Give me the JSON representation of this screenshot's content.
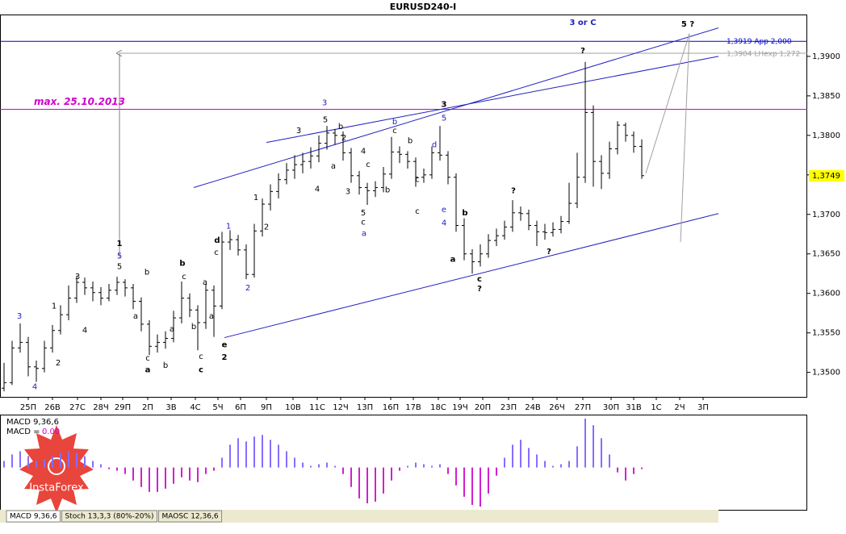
{
  "chart_data": {
    "type": "ohlc",
    "title": "EURUSD240-I",
    "logo": "InstaForex",
    "xlim": [
      -0.5,
      99.5
    ],
    "ylim": [
      1.3469,
      1.3953
    ],
    "yticks": [
      {
        "value": 1.35,
        "label": "1,3500"
      },
      {
        "value": 1.355,
        "label": "1,3550"
      },
      {
        "value": 1.36,
        "label": "1,3600"
      },
      {
        "value": 1.365,
        "label": "1,3650"
      },
      {
        "value": 1.37,
        "label": "1,3700"
      },
      {
        "value": 1.375,
        "label": "1,3750"
      },
      {
        "value": 1.38,
        "label": "1,3800"
      },
      {
        "value": 1.385,
        "label": "1,3850"
      },
      {
        "value": 1.39,
        "label": "1,3900"
      }
    ],
    "xticks": [
      {
        "value": 3,
        "label": "25П"
      },
      {
        "value": 6,
        "label": "26В"
      },
      {
        "value": 9.1,
        "label": "27С"
      },
      {
        "value": 12,
        "label": "28Ч"
      },
      {
        "value": 14.7,
        "label": "29П"
      },
      {
        "value": 17.8,
        "label": "2П"
      },
      {
        "value": 20.7,
        "label": "3В"
      },
      {
        "value": 23.7,
        "label": "4С"
      },
      {
        "value": 26.5,
        "label": "5Ч"
      },
      {
        "value": 29.3,
        "label": "6П"
      },
      {
        "value": 32.5,
        "label": "9П"
      },
      {
        "value": 35.8,
        "label": "10В"
      },
      {
        "value": 38.8,
        "label": "11С"
      },
      {
        "value": 41.7,
        "label": "12Ч"
      },
      {
        "value": 44.7,
        "label": "13П"
      },
      {
        "value": 47.9,
        "label": "16П"
      },
      {
        "value": 50.7,
        "label": "17В"
      },
      {
        "value": 53.8,
        "label": "18С"
      },
      {
        "value": 56.5,
        "label": "19Ч"
      },
      {
        "value": 59.3,
        "label": "20П"
      },
      {
        "value": 62.5,
        "label": "23П"
      },
      {
        "value": 65.5,
        "label": "24В"
      },
      {
        "value": 68.5,
        "label": "26Ч"
      },
      {
        "value": 71.7,
        "label": "27П"
      },
      {
        "value": 75.2,
        "label": "30П"
      },
      {
        "value": 78,
        "label": "31В"
      },
      {
        "value": 80.8,
        "label": "1С"
      },
      {
        "value": 83.7,
        "label": "2Ч"
      },
      {
        "value": 86.6,
        "label": "3П"
      }
    ],
    "bar_color": "#000000",
    "bars": [
      [
        1.348,
        1.3512,
        1.3476,
        1.3487
      ],
      [
        1.3487,
        1.354,
        1.3484,
        1.3531
      ],
      [
        1.3531,
        1.3562,
        1.3525,
        1.3538
      ],
      [
        1.3538,
        1.3545,
        1.3495,
        1.3507
      ],
      [
        1.3507,
        1.3515,
        1.3488,
        1.3505
      ],
      [
        1.3505,
        1.354,
        1.35,
        1.3531
      ],
      [
        1.3531,
        1.356,
        1.3525,
        1.3553
      ],
      [
        1.3553,
        1.3585,
        1.3548,
        1.3573
      ],
      [
        1.3573,
        1.361,
        1.3566,
        1.3594
      ],
      [
        1.3594,
        1.3622,
        1.3588,
        1.3614
      ],
      [
        1.3614,
        1.362,
        1.3598,
        1.3607
      ],
      [
        1.3607,
        1.3615,
        1.359,
        1.3601
      ],
      [
        1.3601,
        1.3608,
        1.3585,
        1.3594
      ],
      [
        1.3594,
        1.3612,
        1.359,
        1.3604
      ],
      [
        1.3604,
        1.3621,
        1.3598,
        1.3614
      ],
      [
        1.3614,
        1.3618,
        1.3596,
        1.3607
      ],
      [
        1.3607,
        1.3612,
        1.358,
        1.359
      ],
      [
        1.359,
        1.3595,
        1.3552,
        1.3561
      ],
      [
        1.3561,
        1.3566,
        1.3522,
        1.3533
      ],
      [
        1.3533,
        1.3548,
        1.3525,
        1.3538
      ],
      [
        1.3538,
        1.3552,
        1.353,
        1.3543
      ],
      [
        1.3543,
        1.3578,
        1.3538,
        1.3569
      ],
      [
        1.3569,
        1.3615,
        1.3562,
        1.3594
      ],
      [
        1.3594,
        1.36,
        1.357,
        1.3579
      ],
      [
        1.3579,
        1.3585,
        1.3528,
        1.3563
      ],
      [
        1.3563,
        1.3612,
        1.3555,
        1.3604
      ],
      [
        1.3604,
        1.361,
        1.3545,
        1.3584
      ],
      [
        1.3584,
        1.3678,
        1.358,
        1.3665
      ],
      [
        1.3665,
        1.368,
        1.3655,
        1.3668
      ],
      [
        1.3668,
        1.3674,
        1.3648,
        1.3655
      ],
      [
        1.3655,
        1.3662,
        1.3618,
        1.3624
      ],
      [
        1.3624,
        1.3688,
        1.362,
        1.3679
      ],
      [
        1.3679,
        1.372,
        1.3672,
        1.3713
      ],
      [
        1.3713,
        1.3738,
        1.3705,
        1.3729
      ],
      [
        1.3729,
        1.3752,
        1.372,
        1.3744
      ],
      [
        1.3744,
        1.3765,
        1.3738,
        1.3756
      ],
      [
        1.3756,
        1.3775,
        1.3745,
        1.3763
      ],
      [
        1.3763,
        1.3778,
        1.3752,
        1.3767
      ],
      [
        1.3767,
        1.3785,
        1.3758,
        1.3774
      ],
      [
        1.3774,
        1.38,
        1.3766,
        1.379
      ],
      [
        1.379,
        1.3812,
        1.3782,
        1.3803
      ],
      [
        1.3803,
        1.3808,
        1.3788,
        1.38
      ],
      [
        1.38,
        1.3805,
        1.3768,
        1.3778
      ],
      [
        1.3778,
        1.3784,
        1.374,
        1.3749
      ],
      [
        1.3749,
        1.3755,
        1.3725,
        1.3734
      ],
      [
        1.3734,
        1.374,
        1.3712,
        1.373
      ],
      [
        1.373,
        1.3742,
        1.3722,
        1.3734
      ],
      [
        1.3734,
        1.376,
        1.3728,
        1.3751
      ],
      [
        1.3751,
        1.3798,
        1.3745,
        1.3779
      ],
      [
        1.3779,
        1.3786,
        1.3765,
        1.3776
      ],
      [
        1.3776,
        1.378,
        1.3758,
        1.3767
      ],
      [
        1.3767,
        1.3772,
        1.3735,
        1.3747
      ],
      [
        1.3747,
        1.3758,
        1.374,
        1.375
      ],
      [
        1.375,
        1.3786,
        1.3745,
        1.3778
      ],
      [
        1.3778,
        1.3812,
        1.3768,
        1.3775
      ],
      [
        1.3775,
        1.378,
        1.3738,
        1.3747
      ],
      [
        1.3747,
        1.3752,
        1.3678,
        1.3686
      ],
      [
        1.3686,
        1.3695,
        1.3642,
        1.365
      ],
      [
        1.365,
        1.3656,
        1.3625,
        1.364
      ],
      [
        1.364,
        1.3662,
        1.3634,
        1.365
      ],
      [
        1.365,
        1.3675,
        1.3645,
        1.3667
      ],
      [
        1.3667,
        1.3682,
        1.366,
        1.3673
      ],
      [
        1.3673,
        1.3692,
        1.3668,
        1.3684
      ],
      [
        1.3684,
        1.3718,
        1.3678,
        1.3702
      ],
      [
        1.3702,
        1.371,
        1.3692,
        1.3701
      ],
      [
        1.3701,
        1.3706,
        1.368,
        1.3686
      ],
      [
        1.3686,
        1.3692,
        1.366,
        1.3678
      ],
      [
        1.3678,
        1.3688,
        1.3668,
        1.3677
      ],
      [
        1.3677,
        1.369,
        1.3672,
        1.3681
      ],
      [
        1.3681,
        1.3698,
        1.3676,
        1.3691
      ],
      [
        1.3691,
        1.374,
        1.3688,
        1.3714
      ],
      [
        1.3714,
        1.3778,
        1.3708,
        1.3747
      ],
      [
        1.3747,
        1.3893,
        1.374,
        1.3829
      ],
      [
        1.3829,
        1.3838,
        1.3735,
        1.3767
      ],
      [
        1.3767,
        1.3775,
        1.3732,
        1.3752
      ],
      [
        1.3752,
        1.3792,
        1.3745,
        1.3783
      ],
      [
        1.3783,
        1.3818,
        1.3776,
        1.3813
      ],
      [
        1.3813,
        1.3816,
        1.3792,
        1.38
      ],
      [
        1.38,
        1.3805,
        1.3778,
        1.3786
      ],
      [
        1.3786,
        1.3795,
        1.3745,
        1.3749
      ]
    ],
    "last_price": {
      "value": 1.3749,
      "label": "1,3749",
      "color": "#ffff00"
    },
    "levels": [
      {
        "value": 1.3919,
        "label": "1,3919 App 2,000",
        "color": "#0000cc",
        "from": -0.5
      },
      {
        "value": 1.3904,
        "label": "1,3904 LHexp 1,272",
        "color": "#a0a0a0",
        "from": 14.3
      },
      {
        "value": 1.3833,
        "label": "max. 25.10.2013",
        "color": "#d000d0",
        "from": -0.5
      }
    ],
    "lines": [
      {
        "x": [
          23.5,
          88.5
        ],
        "y": [
          1.3734,
          1.3936
        ],
        "color": "#2020c0"
      },
      {
        "x": [
          32.5,
          88.5
        ],
        "y": [
          1.3791,
          1.39
        ],
        "color": "#2020c0"
      },
      {
        "x": [
          27.3,
          88.5
        ],
        "y": [
          1.3544,
          1.3701
        ],
        "color": "#2020c0"
      },
      {
        "x": [
          14.3,
          14.3
        ],
        "y": [
          1.3645,
          1.3904
        ],
        "color": "#808080",
        "arrow": true
      },
      {
        "x": [
          79.5,
          84.9,
          83.8
        ],
        "y": [
          1.3752,
          1.3929,
          1.3665
        ],
        "color": "#a0a0a0"
      }
    ],
    "annotations": [
      {
        "text": "3",
        "x": 1.9,
        "y": 1.3571,
        "color": "#2020c0"
      },
      {
        "text": "4",
        "x": 3.8,
        "y": 1.3482,
        "color": "#2020c0"
      },
      {
        "text": "1",
        "x": 6.2,
        "y": 1.3584,
        "color": "#000000"
      },
      {
        "text": "2",
        "x": 6.7,
        "y": 1.3512,
        "color": "#000000"
      },
      {
        "text": "3",
        "x": 9.1,
        "y": 1.3621,
        "color": "#000000"
      },
      {
        "text": "4",
        "x": 10,
        "y": 1.3553,
        "color": "#000000"
      },
      {
        "text": "1",
        "x": 14.3,
        "y": 1.3663,
        "color": "#000000",
        "bold": true
      },
      {
        "text": "5",
        "x": 14.3,
        "y": 1.3647,
        "color": "#2020c0"
      },
      {
        "text": "5",
        "x": 14.3,
        "y": 1.3634,
        "color": "#000000"
      },
      {
        "text": "b",
        "x": 17.7,
        "y": 1.3627,
        "color": "#000000"
      },
      {
        "text": "a",
        "x": 16.3,
        "y": 1.3571,
        "color": "#000000"
      },
      {
        "text": "c",
        "x": 17.8,
        "y": 1.3518,
        "color": "#000000"
      },
      {
        "text": "a",
        "x": 17.8,
        "y": 1.3503,
        "color": "#000000",
        "bold": true
      },
      {
        "text": "b",
        "x": 20,
        "y": 1.3509,
        "color": "#000000"
      },
      {
        "text": "a",
        "x": 20.8,
        "y": 1.3555,
        "color": "#000000"
      },
      {
        "text": "b",
        "x": 22.1,
        "y": 1.3638,
        "color": "#000000",
        "bold": true
      },
      {
        "text": "c",
        "x": 22.3,
        "y": 1.3621,
        "color": "#000000"
      },
      {
        "text": "a",
        "x": 24.9,
        "y": 1.3614,
        "color": "#000000"
      },
      {
        "text": "b",
        "x": 23.5,
        "y": 1.3558,
        "color": "#000000"
      },
      {
        "text": "c",
        "x": 24.4,
        "y": 1.352,
        "color": "#000000"
      },
      {
        "text": "c",
        "x": 24.4,
        "y": 1.3503,
        "color": "#000000",
        "bold": true
      },
      {
        "text": "a",
        "x": 25.7,
        "y": 1.3571,
        "color": "#000000"
      },
      {
        "text": "d",
        "x": 26.4,
        "y": 1.3667,
        "color": "#000000",
        "bold": true
      },
      {
        "text": "c",
        "x": 26.3,
        "y": 1.3652,
        "color": "#000000"
      },
      {
        "text": "e",
        "x": 27.3,
        "y": 1.3535,
        "color": "#000000",
        "bold": true
      },
      {
        "text": "2",
        "x": 27.3,
        "y": 1.3519,
        "color": "#000000",
        "bold": true
      },
      {
        "text": "1",
        "x": 27.8,
        "y": 1.3685,
        "color": "#2020c0"
      },
      {
        "text": "2",
        "x": 30.2,
        "y": 1.3607,
        "color": "#2020c0"
      },
      {
        "text": "1",
        "x": 31.2,
        "y": 1.3721,
        "color": "#000000"
      },
      {
        "text": "2",
        "x": 32.5,
        "y": 1.3684,
        "color": "#000000"
      },
      {
        "text": "3",
        "x": 36.5,
        "y": 1.3806,
        "color": "#000000"
      },
      {
        "text": "4",
        "x": 38.8,
        "y": 1.3732,
        "color": "#000000"
      },
      {
        "text": "3",
        "x": 39.7,
        "y": 1.3841,
        "color": "#2020c0"
      },
      {
        "text": "5",
        "x": 39.8,
        "y": 1.382,
        "color": "#000000"
      },
      {
        "text": "b",
        "x": 41.7,
        "y": 1.3811,
        "color": "#000000"
      },
      {
        "text": "2",
        "x": 42.1,
        "y": 1.3797,
        "color": "#000000"
      },
      {
        "text": "a",
        "x": 40.8,
        "y": 1.3761,
        "color": "#000000"
      },
      {
        "text": "3",
        "x": 42.6,
        "y": 1.3729,
        "color": "#000000"
      },
      {
        "text": "4",
        "x": 44.5,
        "y": 1.378,
        "color": "#000000"
      },
      {
        "text": "c",
        "x": 45.1,
        "y": 1.3763,
        "color": "#000000"
      },
      {
        "text": "5",
        "x": 44.5,
        "y": 1.3702,
        "color": "#000000"
      },
      {
        "text": "c",
        "x": 44.5,
        "y": 1.369,
        "color": "#000000"
      },
      {
        "text": "a",
        "x": 44.6,
        "y": 1.3676,
        "color": "#2020c0"
      },
      {
        "text": "b",
        "x": 47.5,
        "y": 1.3731,
        "color": "#000000"
      },
      {
        "text": "b",
        "x": 48.4,
        "y": 1.3817,
        "color": "#2020c0"
      },
      {
        "text": "c",
        "x": 48.4,
        "y": 1.3806,
        "color": "#000000"
      },
      {
        "text": "b",
        "x": 50.3,
        "y": 1.3793,
        "color": "#000000"
      },
      {
        "text": "c",
        "x": 51.2,
        "y": 1.3744,
        "color": "#000000"
      },
      {
        "text": "c",
        "x": 51.2,
        "y": 1.3704,
        "color": "#000000"
      },
      {
        "text": "3",
        "x": 54.5,
        "y": 1.3839,
        "color": "#000000",
        "bold": true
      },
      {
        "text": "5",
        "x": 54.5,
        "y": 1.3822,
        "color": "#2020c0"
      },
      {
        "text": "d",
        "x": 53.3,
        "y": 1.3788,
        "color": "#2020c0"
      },
      {
        "text": "e",
        "x": 54.5,
        "y": 1.3706,
        "color": "#2020c0"
      },
      {
        "text": "4",
        "x": 54.5,
        "y": 1.3689,
        "color": "#2020c0"
      },
      {
        "text": "b",
        "x": 57.1,
        "y": 1.3702,
        "color": "#000000",
        "bold": true
      },
      {
        "text": "a",
        "x": 55.6,
        "y": 1.3643,
        "color": "#000000",
        "bold": true
      },
      {
        "text": "c",
        "x": 58.9,
        "y": 1.3618,
        "color": "#000000",
        "bold": true
      },
      {
        "text": "?",
        "x": 58.9,
        "y": 1.3606,
        "color": "#000000",
        "bold": true
      },
      {
        "text": "?",
        "x": 63.1,
        "y": 1.373,
        "color": "#000000",
        "bold": true
      },
      {
        "text": "?",
        "x": 67.5,
        "y": 1.3653,
        "color": "#000000",
        "bold": true
      },
      {
        "text": "?",
        "x": 71.7,
        "y": 1.3907,
        "color": "#000000",
        "bold": true
      },
      {
        "text": "3 or C",
        "x": 71.7,
        "y": 1.3943,
        "color": "#2020c0",
        "bold": true
      },
      {
        "text": "5 ?",
        "x": 84.7,
        "y": 1.3941,
        "color": "#000000",
        "bold": true
      }
    ],
    "macd": {
      "title": "MACD 9,36,6",
      "value_caption": "MACD =",
      "value": 0,
      "value_label": "0.00",
      "value_color": "#d000d0",
      "ylim": [
        -0.0026,
        0.0032
      ],
      "positive_color": "#8a6cff",
      "negative_color": "#d020d0",
      "values": [
        0.0004,
        0.0008,
        0.001,
        0.0007,
        0.0004,
        0.0005,
        0.0007,
        0.0009,
        0.001,
        0.0009,
        0.0007,
        0.0004,
        0.0002,
        -0.0001,
        -0.0002,
        -0.0004,
        -0.0008,
        -0.0012,
        -0.0015,
        -0.0015,
        -0.0013,
        -0.001,
        -0.0006,
        -0.0008,
        -0.0009,
        -0.0004,
        -0.0002,
        0.0006,
        0.0014,
        0.0018,
        0.0016,
        0.0019,
        0.002,
        0.0017,
        0.0014,
        0.001,
        0.0006,
        0.0003,
        0.0001,
        0.0002,
        0.0003,
        0.0001,
        -0.0004,
        -0.0012,
        -0.0019,
        -0.0022,
        -0.0021,
        -0.0016,
        -0.0008,
        -0.0002,
        0.0001,
        0.0003,
        0.0002,
        0.0001,
        0.0002,
        -0.0004,
        -0.0011,
        -0.0018,
        -0.0023,
        -0.0024,
        -0.0016,
        -0.0005,
        0.0006,
        0.0014,
        0.0017,
        0.0012,
        0.0008,
        0.0004,
        0.0001,
        0.0002,
        0.0004,
        0.0013,
        0.003,
        0.0026,
        0.0018,
        0.0008,
        -0.0003,
        -0.0008,
        -0.0004,
        -0.0001
      ]
    },
    "tabs": [
      "MACD 9,36,6",
      "Stoch 13,3,3 (80%-20%)",
      "MAOSC 12,36,6"
    ]
  }
}
